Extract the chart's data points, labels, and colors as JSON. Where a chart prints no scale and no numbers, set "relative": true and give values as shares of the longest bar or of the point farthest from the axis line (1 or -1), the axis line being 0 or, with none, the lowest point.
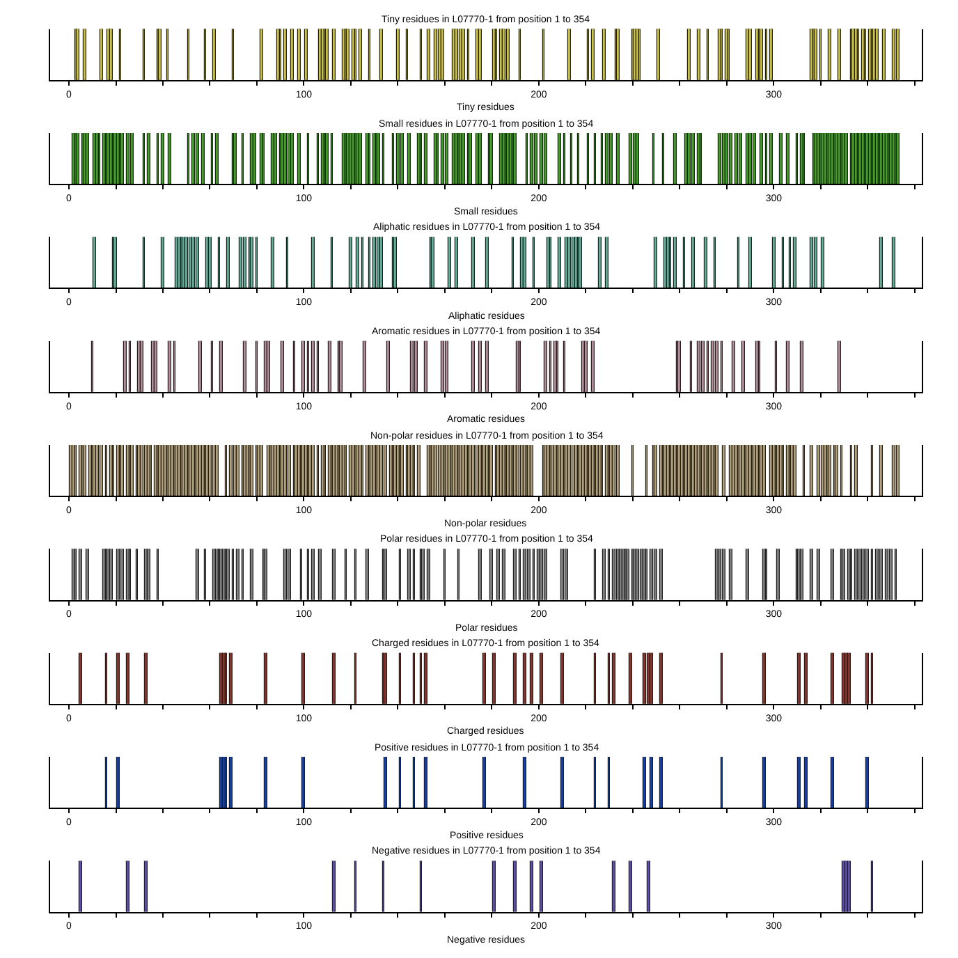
{
  "chart_data": [
    {
      "type": "bar",
      "relative": true,
      "title": "Tiny residues in L07770-1 from position 1 to 354",
      "xlabel": "Tiny residues",
      "color": "#c8c050",
      "xlim": [
        -8,
        363
      ],
      "xticks": [
        0,
        {
          "value": 20,
          "label": null
        },
        {
          "value": 40,
          "label": null
        },
        {
          "value": 60,
          "label": null
        },
        {
          "value": 80,
          "label": null
        },
        100,
        {
          "value": 120,
          "label": null
        },
        {
          "value": 140,
          "label": null
        },
        {
          "value": 160,
          "label": null
        },
        {
          "value": 180,
          "label": null
        },
        200,
        {
          "value": 220,
          "label": null
        },
        {
          "value": 240,
          "label": null
        },
        {
          "value": 260,
          "label": null
        },
        {
          "value": 280,
          "label": null
        },
        300,
        {
          "value": 320,
          "label": null
        },
        {
          "value": 340,
          "label": null
        },
        {
          "value": 360,
          "label": null
        }
      ],
      "x": [
        3,
        4,
        7,
        14,
        17,
        18,
        22,
        32,
        38,
        39,
        42,
        51,
        58,
        62,
        70,
        82,
        89,
        90,
        92,
        95,
        98,
        101,
        107,
        108,
        109,
        110,
        113,
        117,
        118,
        119,
        121,
        122,
        124,
        128,
        133,
        140,
        144,
        150,
        153,
        156,
        158,
        159,
        164,
        165,
        167,
        168,
        170,
        174,
        175,
        181,
        182,
        184,
        185,
        187,
        192,
        202,
        213,
        221,
        223,
        228,
        233,
        234,
        240,
        241,
        242,
        243,
        251,
        264,
        268,
        272,
        277,
        278,
        280,
        281,
        289,
        290,
        293,
        294,
        295,
        297,
        299,
        316,
        317,
        318,
        320,
        324,
        328,
        333,
        334,
        335,
        336,
        338,
        339,
        341,
        342,
        343,
        344,
        347,
        351,
        353
      ],
      "values": [
        1,
        1,
        1,
        1,
        1,
        1,
        1,
        1,
        1,
        1,
        1,
        1,
        1,
        1,
        1,
        1,
        1,
        1,
        1,
        1,
        1,
        1,
        1,
        1,
        1,
        1,
        1,
        1,
        1,
        1,
        1,
        1,
        1,
        1,
        1,
        1,
        1,
        1,
        1,
        1,
        1,
        1,
        1,
        1,
        1,
        1,
        1,
        1,
        1,
        1,
        1,
        1,
        1,
        1,
        1,
        1,
        1,
        1,
        1,
        1,
        1,
        1,
        1,
        1,
        1,
        1,
        1,
        1,
        1,
        1,
        1,
        1,
        1,
        1,
        1,
        1,
        1,
        1,
        1,
        1,
        1,
        1,
        1,
        1,
        1,
        1,
        1,
        1,
        1,
        1,
        1,
        1,
        1,
        1,
        1,
        1,
        1,
        1,
        1,
        1
      ]
    },
    {
      "type": "bar",
      "relative": true,
      "title": "Small residues in L07770-1 from position 1 to 354",
      "xlabel": "Small residues",
      "color": "#4a9a30",
      "xlim": [
        -8,
        363
      ],
      "xticks": [
        0,
        {
          "value": 20,
          "label": null
        },
        {
          "value": 40,
          "label": null
        },
        {
          "value": 60,
          "label": null
        },
        {
          "value": 80,
          "label": null
        },
        100,
        {
          "value": 120,
          "label": null
        },
        {
          "value": 140,
          "label": null
        },
        {
          "value": 160,
          "label": null
        },
        {
          "value": 180,
          "label": null
        },
        200,
        {
          "value": 220,
          "label": null
        },
        {
          "value": 240,
          "label": null
        },
        {
          "value": 260,
          "label": null
        },
        {
          "value": 280,
          "label": null
        },
        300,
        {
          "value": 320,
          "label": null
        },
        {
          "value": 340,
          "label": null
        },
        {
          "value": 360,
          "label": null
        }
      ],
      "x": [
        2,
        3,
        4,
        6,
        7,
        8,
        11,
        12,
        13,
        15,
        16,
        17,
        18,
        19,
        20,
        21,
        22,
        23,
        25,
        27,
        32,
        34,
        38,
        40,
        43,
        51,
        53,
        55,
        57,
        61,
        63,
        70,
        71,
        74,
        78,
        79,
        82,
        83,
        87,
        88,
        90,
        91,
        92,
        94,
        95,
        98,
        102,
        106,
        108,
        109,
        110,
        112,
        117,
        118,
        119,
        120,
        121,
        122,
        123,
        124,
        127,
        128,
        130,
        131,
        132,
        134,
        138,
        140,
        142,
        145,
        149,
        150,
        152,
        156,
        157,
        159,
        161,
        164,
        165,
        166,
        167,
        168,
        170,
        171,
        174,
        175,
        179,
        180,
        184,
        185,
        186,
        187,
        188,
        189,
        190,
        195,
        197,
        199,
        201,
        203,
        209,
        211,
        214,
        217,
        221,
        224,
        227,
        229,
        231,
        234,
        239,
        241,
        242,
        249,
        253,
        258,
        263,
        264,
        266,
        268,
        269,
        277,
        279,
        280,
        282,
        284,
        286,
        289,
        290,
        292,
        295,
        297,
        299,
        303,
        306,
        310,
        312,
        313,
        317,
        318,
        319,
        320,
        321,
        322,
        323,
        324,
        325,
        326,
        327,
        328,
        329,
        330,
        331,
        333,
        334,
        335,
        336,
        337,
        338,
        339,
        340,
        341,
        342,
        343,
        344,
        345,
        346,
        347,
        348,
        349,
        350,
        351,
        352,
        353
      ],
      "values": [
        1,
        1,
        1,
        1,
        1,
        1,
        1,
        1,
        1,
        1,
        1,
        1,
        1,
        1,
        1,
        1,
        1,
        1,
        1,
        1,
        1,
        1,
        1,
        1,
        1,
        1,
        1,
        1,
        1,
        1,
        1,
        1,
        1,
        1,
        1,
        1,
        1,
        1,
        1,
        1,
        1,
        1,
        1,
        1,
        1,
        1,
        1,
        1,
        1,
        1,
        1,
        1,
        1,
        1,
        1,
        1,
        1,
        1,
        1,
        1,
        1,
        1,
        1,
        1,
        1,
        1,
        1,
        1,
        1,
        1,
        1,
        1,
        1,
        1,
        1,
        1,
        1,
        1,
        1,
        1,
        1,
        1,
        1,
        1,
        1,
        1,
        1,
        1,
        1,
        1,
        1,
        1,
        1,
        1,
        1,
        1,
        1,
        1,
        1,
        1,
        1,
        1,
        1,
        1,
        1,
        1,
        1,
        1,
        1,
        1,
        1,
        1,
        1,
        1,
        1,
        1,
        1,
        1,
        1,
        1,
        1,
        1,
        1,
        1,
        1,
        1,
        1,
        1,
        1,
        1,
        1,
        1,
        1,
        1,
        1,
        1,
        1,
        1,
        1,
        1,
        1,
        1,
        1,
        1,
        1,
        1,
        1,
        1,
        1,
        1,
        1,
        1,
        1,
        1,
        1,
        1,
        1,
        1,
        1,
        1,
        1,
        1,
        1,
        1,
        1,
        1,
        1,
        1,
        1,
        1,
        1,
        1,
        1,
        1
      ]
    },
    {
      "type": "bar",
      "relative": true,
      "title": "Aliphatic residues in L07770-1 from position 1 to 354",
      "xlabel": "Aliphatic residues",
      "color": "#6aaa98",
      "xlim": [
        -8,
        363
      ],
      "xticks": [
        0,
        {
          "value": 20,
          "label": null
        },
        {
          "value": 40,
          "label": null
        },
        {
          "value": 60,
          "label": null
        },
        {
          "value": 80,
          "label": null
        },
        100,
        {
          "value": 120,
          "label": null
        },
        {
          "value": 140,
          "label": null
        },
        {
          "value": 160,
          "label": null
        },
        {
          "value": 180,
          "label": null
        },
        200,
        {
          "value": 220,
          "label": null
        },
        {
          "value": 240,
          "label": null
        },
        {
          "value": 260,
          "label": null
        },
        {
          "value": 280,
          "label": null
        },
        300,
        {
          "value": 320,
          "label": null
        },
        {
          "value": 340,
          "label": null
        },
        {
          "value": 360,
          "label": null
        }
      ],
      "x": [
        11,
        19,
        20,
        32,
        40,
        46,
        47,
        48,
        49,
        50,
        52,
        53,
        55,
        59,
        60,
        64,
        68,
        73,
        75,
        77,
        78,
        80,
        87,
        93,
        104,
        112,
        120,
        123,
        125,
        128,
        130,
        132,
        133,
        138,
        139,
        154,
        155,
        162,
        165,
        172,
        178,
        189,
        193,
        194,
        198,
        204,
        205,
        209,
        212,
        213,
        215,
        216,
        217,
        218,
        226,
        229,
        250,
        254,
        255,
        256,
        258,
        262,
        266,
        271,
        275,
        285,
        290,
        300,
        304,
        307,
        309,
        316,
        318,
        321,
        346,
        351
      ],
      "values": [
        1,
        1,
        1,
        1,
        1,
        1,
        1,
        1,
        1,
        1,
        1,
        1,
        1,
        1,
        1,
        1,
        1,
        1,
        1,
        1,
        1,
        1,
        1,
        1,
        1,
        1,
        1,
        1,
        1,
        1,
        1,
        1,
        1,
        1,
        1,
        1,
        1,
        1,
        1,
        1,
        1,
        1,
        1,
        1,
        1,
        1,
        1,
        1,
        1,
        1,
        1,
        1,
        1,
        1,
        1,
        1,
        1,
        1,
        1,
        1,
        1,
        1,
        1,
        1,
        1,
        1,
        1,
        1,
        1,
        1,
        1,
        1,
        1,
        1,
        1,
        1
      ]
    },
    {
      "type": "bar",
      "relative": true,
      "title": "Aromatic residues in L07770-1 from position 1 to 354",
      "xlabel": "Aromatic residues",
      "color": "#b09098",
      "xlim": [
        -8,
        363
      ],
      "xticks": [
        0,
        {
          "value": 20,
          "label": null
        },
        {
          "value": 40,
          "label": null
        },
        {
          "value": 60,
          "label": null
        },
        {
          "value": 80,
          "label": null
        },
        100,
        {
          "value": 120,
          "label": null
        },
        {
          "value": 140,
          "label": null
        },
        {
          "value": 160,
          "label": null
        },
        {
          "value": 180,
          "label": null
        },
        200,
        {
          "value": 220,
          "label": null
        },
        {
          "value": 240,
          "label": null
        },
        {
          "value": 260,
          "label": null
        },
        {
          "value": 280,
          "label": null
        },
        300,
        {
          "value": 320,
          "label": null
        },
        {
          "value": 340,
          "label": null
        },
        {
          "value": 360,
          "label": null
        }
      ],
      "x": [
        10,
        24,
        26,
        30,
        31,
        36,
        37,
        43,
        45,
        56,
        61,
        65,
        75,
        80,
        84,
        85,
        91,
        96,
        100,
        102,
        104,
        106,
        111,
        115,
        116,
        126,
        136,
        146,
        148,
        152,
        159,
        161,
        172,
        175,
        178,
        191,
        192,
        203,
        205,
        207,
        208,
        211,
        219,
        220,
        223,
        259,
        260,
        265,
        268,
        270,
        272,
        274,
        276,
        278,
        283,
        287,
        293,
        294,
        301,
        306,
        312,
        328
      ],
      "values": [
        1,
        1,
        1,
        1,
        1,
        1,
        1,
        1,
        1,
        1,
        1,
        1,
        1,
        1,
        1,
        1,
        1,
        1,
        1,
        1,
        1,
        1,
        1,
        1,
        1,
        1,
        1,
        1,
        1,
        1,
        1,
        1,
        1,
        1,
        1,
        1,
        1,
        1,
        1,
        1,
        1,
        1,
        1,
        1,
        1,
        1,
        1,
        1,
        1,
        1,
        1,
        1,
        1,
        1,
        1,
        1,
        1,
        1,
        1,
        1,
        1,
        1
      ]
    },
    {
      "type": "bar",
      "relative": true,
      "title": "Non-polar residues in L07770-1 from position 1 to 354",
      "xlabel": "Non-polar residues",
      "color": "#b0a080",
      "xlim": [
        -8,
        363
      ],
      "xticks": [
        0,
        {
          "value": 20,
          "label": null
        },
        {
          "value": 40,
          "label": null
        },
        {
          "value": 60,
          "label": null
        },
        {
          "value": 80,
          "label": null
        },
        100,
        {
          "value": 120,
          "label": null
        },
        {
          "value": 140,
          "label": null
        },
        {
          "value": 160,
          "label": null
        },
        {
          "value": 180,
          "label": null
        },
        200,
        {
          "value": 220,
          "label": null
        },
        {
          "value": 240,
          "label": null
        },
        {
          "value": 260,
          "label": null
        },
        {
          "value": 280,
          "label": null
        },
        300,
        {
          "value": 320,
          "label": null
        },
        {
          "value": 340,
          "label": null
        },
        {
          "value": 360,
          "label": null
        }
      ],
      "x": [
        1,
        2,
        3,
        5,
        6,
        7,
        9,
        10,
        11,
        12,
        14,
        16,
        18,
        19,
        21,
        22,
        23,
        25,
        26,
        27,
        29,
        30,
        31,
        33,
        34,
        35,
        37,
        38,
        39,
        40,
        41,
        42,
        43,
        44,
        45,
        46,
        47,
        48,
        49,
        50,
        51,
        52,
        53,
        54,
        55,
        56,
        57,
        58,
        59,
        60,
        62,
        63,
        67,
        69,
        71,
        72,
        74,
        75,
        76,
        77,
        78,
        80,
        81,
        82,
        85,
        86,
        87,
        88,
        89,
        90,
        91,
        92,
        94,
        96,
        97,
        98,
        99,
        100,
        101,
        102,
        103,
        104,
        106,
        108,
        109,
        111,
        112,
        113,
        114,
        115,
        116,
        117,
        118,
        120,
        121,
        122,
        123,
        124,
        125,
        127,
        128,
        129,
        130,
        131,
        132,
        133,
        135,
        137,
        138,
        139,
        140,
        141,
        142,
        144,
        145,
        146,
        147,
        149,
        153,
        154,
        155,
        156,
        158,
        159,
        160,
        161,
        162,
        163,
        164,
        165,
        166,
        167,
        168,
        169,
        170,
        171,
        172,
        174,
        175,
        176,
        177,
        178,
        179,
        180,
        182,
        183,
        184,
        185,
        186,
        187,
        188,
        189,
        190,
        191,
        193,
        194,
        195,
        196,
        197,
        202,
        203,
        204,
        205,
        206,
        207,
        208,
        209,
        210,
        211,
        212,
        213,
        215,
        216,
        217,
        218,
        219,
        220,
        221,
        222,
        223,
        224,
        225,
        226,
        227,
        229,
        230,
        231,
        232,
        234,
        240,
        246,
        249,
        250,
        252,
        253,
        254,
        255,
        256,
        257,
        258,
        259,
        260,
        261,
        262,
        263,
        264,
        265,
        266,
        267,
        268,
        269,
        270,
        271,
        272,
        273,
        274,
        275,
        276,
        279,
        282,
        283,
        284,
        285,
        286,
        287,
        288,
        289,
        290,
        291,
        292,
        293,
        294,
        295,
        296,
        299,
        300,
        301,
        302,
        303,
        304,
        306,
        307,
        308,
        309,
        313,
        316,
        319,
        321,
        322,
        323,
        324,
        326,
        327,
        329,
        333,
        335,
        342,
        346,
        351,
        353
      ],
      "values": [
        1,
        1,
        1,
        1,
        1,
        1,
        1,
        1,
        1,
        1,
        1,
        1,
        1,
        1,
        1,
        1,
        1,
        1,
        1,
        1,
        1,
        1,
        1,
        1,
        1,
        1,
        1,
        1,
        1,
        1,
        1,
        1,
        1,
        1,
        1,
        1,
        1,
        1,
        1,
        1,
        1,
        1,
        1,
        1,
        1,
        1,
        1,
        1,
        1,
        1,
        1,
        1,
        1,
        1,
        1,
        1,
        1,
        1,
        1,
        1,
        1,
        1,
        1,
        1,
        1,
        1,
        1,
        1,
        1,
        1,
        1,
        1,
        1,
        1,
        1,
        1,
        1,
        1,
        1,
        1,
        1,
        1,
        1,
        1,
        1,
        1,
        1,
        1,
        1,
        1,
        1,
        1,
        1,
        1,
        1,
        1,
        1,
        1,
        1,
        1,
        1,
        1,
        1,
        1,
        1,
        1,
        1,
        1,
        1,
        1,
        1,
        1,
        1,
        1,
        1,
        1,
        1,
        1,
        1,
        1,
        1,
        1,
        1,
        1,
        1,
        1,
        1,
        1,
        1,
        1,
        1,
        1,
        1,
        1,
        1,
        1,
        1,
        1,
        1,
        1,
        1,
        1,
        1,
        1,
        1,
        1,
        1,
        1,
        1,
        1,
        1,
        1,
        1,
        1,
        1,
        1,
        1,
        1,
        1,
        1,
        1,
        1,
        1,
        1,
        1,
        1,
        1,
        1,
        1,
        1,
        1,
        1,
        1,
        1,
        1,
        1,
        1,
        1,
        1,
        1,
        1,
        1,
        1,
        1,
        1,
        1,
        1,
        1,
        1,
        1,
        1,
        1,
        1,
        1,
        1,
        1,
        1,
        1,
        1,
        1,
        1,
        1,
        1,
        1,
        1,
        1,
        1,
        1,
        1,
        1,
        1,
        1,
        1,
        1,
        1,
        1,
        1,
        1,
        1,
        1,
        1,
        1,
        1,
        1,
        1,
        1,
        1,
        1,
        1,
        1,
        1,
        1,
        1,
        1,
        1,
        1,
        1,
        1,
        1,
        1,
        1,
        1,
        1,
        1,
        1,
        1,
        1,
        1,
        1,
        1,
        1,
        1,
        1,
        1,
        1,
        1,
        1,
        1,
        1,
        1
      ]
    },
    {
      "type": "bar",
      "relative": true,
      "title": "Polar residues in L07770-1 from position 1 to 354",
      "xlabel": "Polar residues",
      "color": "#808080",
      "xlim": [
        -8,
        363
      ],
      "xticks": [
        0,
        {
          "value": 20,
          "label": null
        },
        {
          "value": 40,
          "label": null
        },
        {
          "value": 60,
          "label": null
        },
        {
          "value": 80,
          "label": null
        },
        100,
        {
          "value": 120,
          "label": null
        },
        {
          "value": 140,
          "label": null
        },
        {
          "value": 160,
          "label": null
        },
        {
          "value": 180,
          "label": null
        },
        200,
        {
          "value": 220,
          "label": null
        },
        {
          "value": 240,
          "label": null
        },
        {
          "value": 260,
          "label": null
        },
        {
          "value": 280,
          "label": null
        },
        300,
        {
          "value": 320,
          "label": null
        },
        {
          "value": 340,
          "label": null
        },
        {
          "value": 360,
          "label": null
        }
      ],
      "x": [
        2,
        3,
        5,
        8,
        15,
        16,
        17,
        18,
        21,
        23,
        25,
        26,
        29,
        33,
        34,
        38,
        55,
        58,
        62,
        63,
        64,
        65,
        66,
        67,
        68,
        70,
        72,
        74,
        78,
        83,
        84,
        92,
        94,
        99,
        102,
        104,
        107,
        113,
        118,
        122,
        127,
        134,
        135,
        141,
        145,
        147,
        150,
        151,
        153,
        160,
        166,
        175,
        180,
        183,
        185,
        190,
        192,
        194,
        196,
        198,
        200,
        201,
        203,
        210,
        212,
        224,
        228,
        230,
        232,
        234,
        235,
        236,
        237,
        238,
        240,
        241,
        242,
        244,
        245,
        246,
        248,
        250,
        252,
        276,
        277,
        279,
        282,
        289,
        296,
        297,
        302,
        310,
        311,
        312,
        316,
        319,
        325,
        329,
        330,
        332,
        333,
        335,
        337,
        338,
        340,
        342,
        344,
        346,
        348,
        350,
        352
      ],
      "values": [
        1,
        1,
        1,
        1,
        1,
        1,
        1,
        1,
        1,
        1,
        1,
        1,
        1,
        1,
        1,
        1,
        1,
        1,
        1,
        1,
        1,
        1,
        1,
        1,
        1,
        1,
        1,
        1,
        1,
        1,
        1,
        1,
        1,
        1,
        1,
        1,
        1,
        1,
        1,
        1,
        1,
        1,
        1,
        1,
        1,
        1,
        1,
        1,
        1,
        1,
        1,
        1,
        1,
        1,
        1,
        1,
        1,
        1,
        1,
        1,
        1,
        1,
        1,
        1,
        1,
        1,
        1,
        1,
        1,
        1,
        1,
        1,
        1,
        1,
        1,
        1,
        1,
        1,
        1,
        1,
        1,
        1,
        1,
        1,
        1,
        1,
        1,
        1,
        1,
        1,
        1,
        1,
        1,
        1,
        1,
        1,
        1,
        1,
        1,
        1,
        1,
        1,
        1,
        1,
        1,
        1,
        1,
        1,
        1,
        1,
        1
      ]
    },
    {
      "type": "bar",
      "relative": true,
      "title": "Charged residues in L07770-1 from position 1 to 354",
      "xlabel": "Charged residues",
      "color": "#803830",
      "xlim": [
        -8,
        363
      ],
      "xticks": [
        0,
        {
          "value": 20,
          "label": null
        },
        {
          "value": 40,
          "label": null
        },
        {
          "value": 60,
          "label": null
        },
        {
          "value": 80,
          "label": null
        },
        100,
        {
          "value": 120,
          "label": null
        },
        {
          "value": 140,
          "label": null
        },
        {
          "value": 160,
          "label": null
        },
        {
          "value": 180,
          "label": null
        },
        200,
        {
          "value": 220,
          "label": null
        },
        {
          "value": 240,
          "label": null
        },
        {
          "value": 260,
          "label": null
        },
        {
          "value": 280,
          "label": null
        },
        300,
        {
          "value": 320,
          "label": null
        },
        {
          "value": 340,
          "label": null
        },
        {
          "value": 360,
          "label": null
        }
      ],
      "x": [
        5,
        16,
        21,
        25,
        33,
        65,
        66,
        67,
        69,
        84,
        100,
        113,
        122,
        134,
        135,
        141,
        147,
        150,
        152,
        177,
        181,
        190,
        194,
        197,
        201,
        210,
        224,
        230,
        232,
        239,
        245,
        247,
        248,
        252,
        278,
        296,
        311,
        314,
        325,
        330,
        331,
        332,
        340,
        342
      ],
      "values": [
        1,
        1,
        1,
        1,
        1,
        1,
        1,
        1,
        1,
        1,
        1,
        1,
        1,
        1,
        1,
        1,
        1,
        1,
        1,
        1,
        1,
        1,
        1,
        1,
        1,
        1,
        1,
        1,
        1,
        1,
        1,
        1,
        1,
        1,
        1,
        1,
        1,
        1,
        1,
        1,
        1,
        1,
        1,
        1
      ]
    },
    {
      "type": "bar",
      "relative": true,
      "title": "Positive residues in L07770-1 from position 1 to 354",
      "xlabel": "Positive residues",
      "color": "#1840a0",
      "xlim": [
        -8,
        363
      ],
      "xticks": [
        0,
        {
          "value": 20,
          "label": null
        },
        {
          "value": 40,
          "label": null
        },
        {
          "value": 60,
          "label": null
        },
        {
          "value": 80,
          "label": null
        },
        100,
        {
          "value": 120,
          "label": null
        },
        {
          "value": 140,
          "label": null
        },
        {
          "value": 160,
          "label": null
        },
        {
          "value": 180,
          "label": null
        },
        200,
        {
          "value": 220,
          "label": null
        },
        {
          "value": 240,
          "label": null
        },
        {
          "value": 260,
          "label": null
        },
        {
          "value": 280,
          "label": null
        },
        300,
        {
          "value": 320,
          "label": null
        },
        {
          "value": 340,
          "label": null
        },
        {
          "value": 360,
          "label": null
        }
      ],
      "x": [
        16,
        21,
        65,
        66,
        67,
        69,
        84,
        100,
        135,
        141,
        147,
        152,
        177,
        194,
        210,
        224,
        230,
        245,
        248,
        252,
        278,
        296,
        311,
        314,
        325,
        340
      ],
      "values": [
        1,
        1,
        1,
        1,
        1,
        1,
        1,
        1,
        1,
        1,
        1,
        1,
        1,
        1,
        1,
        1,
        1,
        1,
        1,
        1,
        1,
        1,
        1,
        1,
        1,
        1
      ]
    },
    {
      "type": "bar",
      "relative": true,
      "title": "Negative residues in L07770-1 from position 1 to 354",
      "xlabel": "Negative residues",
      "color": "#6050a0",
      "xlim": [
        -8,
        363
      ],
      "xticks": [
        0,
        {
          "value": 20,
          "label": null
        },
        {
          "value": 40,
          "label": null
        },
        {
          "value": 60,
          "label": null
        },
        {
          "value": 80,
          "label": null
        },
        100,
        {
          "value": 120,
          "label": null
        },
        {
          "value": 140,
          "label": null
        },
        {
          "value": 160,
          "label": null
        },
        {
          "value": 180,
          "label": null
        },
        200,
        {
          "value": 220,
          "label": null
        },
        {
          "value": 240,
          "label": null
        },
        {
          "value": 260,
          "label": null
        },
        {
          "value": 280,
          "label": null
        },
        300,
        {
          "value": 320,
          "label": null
        },
        {
          "value": 340,
          "label": null
        },
        {
          "value": 360,
          "label": null
        }
      ],
      "x": [
        5,
        25,
        33,
        113,
        122,
        134,
        150,
        181,
        190,
        197,
        201,
        232,
        239,
        247,
        330,
        331,
        332,
        342
      ],
      "values": [
        1,
        1,
        1,
        1,
        1,
        1,
        1,
        1,
        1,
        1,
        1,
        1,
        1,
        1,
        1,
        1,
        1,
        1
      ]
    }
  ]
}
